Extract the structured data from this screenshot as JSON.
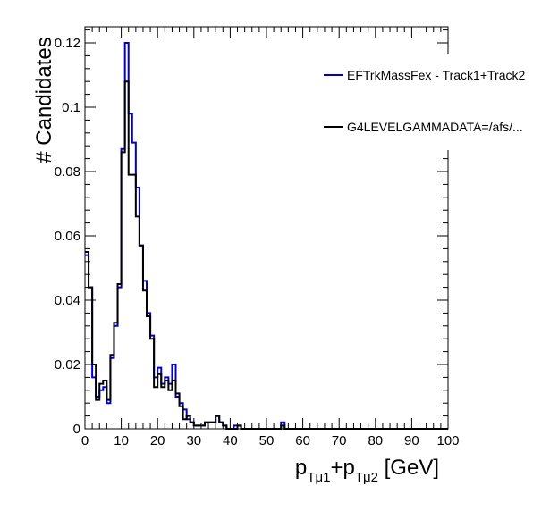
{
  "chart_data": {
    "type": "line",
    "title": "",
    "xlabel": {
      "p1": "p",
      "s1": "Tμ1",
      "plus": "+",
      "p2": "p",
      "s2": "Tμ2",
      "unit": " [GeV]"
    },
    "ylabel": "# Candidates",
    "xlim": [
      0,
      100
    ],
    "ylim": [
      0,
      0.125
    ],
    "x_ticks": [
      "0",
      "10",
      "20",
      "30",
      "40",
      "50",
      "60",
      "70",
      "80",
      "90",
      "100"
    ],
    "y_ticks": [
      "0",
      "0.02",
      "0.04",
      "0.06",
      "0.08",
      "0.1",
      "0.12"
    ],
    "bin_width": 1,
    "legend_placement": "top-right",
    "series": [
      {
        "name": "EFTrkMassFex - Track1+Track2",
        "color": "#0000cc",
        "values": [
          0.054,
          0.044,
          0.016,
          0.01,
          0.012,
          0.013,
          0.008,
          0.022,
          0.032,
          0.044,
          0.087,
          0.12,
          0.098,
          0.089,
          0.075,
          0.057,
          0.046,
          0.036,
          0.029,
          0.016,
          0.019,
          0.014,
          0.016,
          0.014,
          0.02,
          0.01,
          0.008,
          0.006,
          0.003,
          0.002,
          0.001,
          0.001,
          0.001,
          0.002,
          0.002,
          0.002,
          0.004,
          0.002,
          0.001,
          0,
          0,
          0.001,
          0.001,
          0,
          0,
          0,
          0,
          0,
          0,
          0,
          0,
          0,
          0,
          0,
          0.002,
          0,
          0,
          0,
          0,
          0,
          0,
          0,
          0,
          0,
          0,
          0,
          0,
          0,
          0,
          0,
          0,
          0,
          0,
          0,
          0,
          0,
          0,
          0,
          0,
          0,
          0,
          0,
          0,
          0,
          0,
          0,
          0,
          0,
          0,
          0,
          0,
          0,
          0,
          0,
          0,
          0,
          0,
          0,
          0,
          0
        ]
      },
      {
        "name": "G4LEVELGAMMADATA=/afs/...",
        "color": "#000000",
        "values": [
          0.055,
          0.044,
          0.02,
          0.009,
          0.014,
          0.015,
          0.009,
          0.023,
          0.033,
          0.045,
          0.086,
          0.108,
          0.079,
          0.079,
          0.066,
          0.057,
          0.043,
          0.035,
          0.028,
          0.013,
          0.017,
          0.013,
          0.015,
          0.012,
          0.015,
          0.011,
          0.007,
          0.003,
          0.004,
          0.002,
          0.001,
          0.001,
          0.001,
          0.002,
          0.002,
          0.002,
          0.004,
          0.002,
          0.001,
          0,
          0,
          0,
          0.001,
          0,
          0,
          0,
          0,
          0,
          0,
          0,
          0,
          0,
          0,
          0,
          0.001,
          0,
          0,
          0,
          0,
          0,
          0,
          0,
          0,
          0,
          0,
          0,
          0,
          0,
          0,
          0,
          0,
          0,
          0,
          0,
          0,
          0,
          0,
          0,
          0,
          0,
          0,
          0,
          0,
          0,
          0,
          0,
          0,
          0,
          0,
          0,
          0,
          0,
          0,
          0,
          0,
          0,
          0,
          0,
          0,
          0
        ]
      }
    ]
  }
}
